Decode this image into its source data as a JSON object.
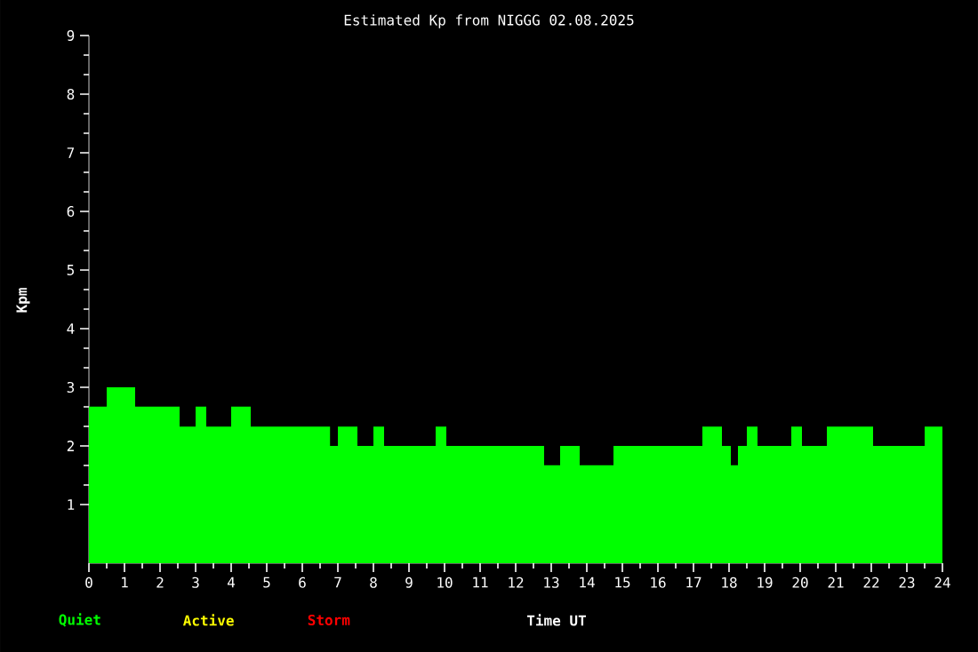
{
  "chart_data": {
    "type": "area",
    "title": "Estimated Kp from NIGGG 02.08.2025",
    "xlabel": "Time UT",
    "ylabel": "Kpm",
    "series": [
      {
        "name": "Quiet",
        "color": "#00ff00",
        "x": [
          0,
          0.5,
          0.5,
          1.3,
          1.3,
          2.55,
          2.55,
          3,
          3,
          3.3,
          3.3,
          4,
          4,
          4.55,
          4.55,
          6.78,
          6.78,
          7,
          7,
          7.55,
          7.55,
          8,
          8,
          8.3,
          8.3,
          9.75,
          9.75,
          10.05,
          10.05,
          12.8,
          12.8,
          13.25,
          13.25,
          13.8,
          13.8,
          14.75,
          14.75,
          17.25,
          17.25,
          17.8,
          17.8,
          18.05,
          18.05,
          18.25,
          18.25,
          18.5,
          18.5,
          18.8,
          18.8,
          19.75,
          19.75,
          20.05,
          20.05,
          20.75,
          20.75,
          22.05,
          22.05,
          23.5,
          23.5,
          24
        ],
        "values": [
          2.67,
          2.67,
          3,
          3,
          2.67,
          2.67,
          2.33,
          2.33,
          2.67,
          2.67,
          2.33,
          2.33,
          2.67,
          2.67,
          2.33,
          2.33,
          2,
          2,
          2.33,
          2.33,
          2,
          2,
          2.33,
          2.33,
          2,
          2,
          2.33,
          2.33,
          2,
          2,
          1.67,
          1.67,
          2,
          2,
          1.67,
          1.67,
          2,
          2,
          2.33,
          2.33,
          2,
          2,
          1.67,
          1.67,
          2,
          2,
          2.33,
          2.33,
          2,
          2,
          2.33,
          2.33,
          2,
          2,
          2.33,
          2.33,
          2,
          2,
          2.33,
          2.33
        ]
      },
      {
        "name": "Active",
        "color": "#ffff00"
      },
      {
        "name": "Storm",
        "color": "#ff0000"
      }
    ],
    "xlim": [
      0,
      24
    ],
    "xticks": [
      0,
      1,
      2,
      3,
      4,
      5,
      6,
      7,
      8,
      9,
      10,
      11,
      12,
      13,
      14,
      15,
      16,
      17,
      18,
      19,
      20,
      21,
      22,
      23,
      24
    ],
    "ylim": [
      0,
      9
    ],
    "yticks": [
      1,
      2,
      3,
      4,
      5,
      6,
      7,
      8,
      9
    ],
    "grid": false
  }
}
